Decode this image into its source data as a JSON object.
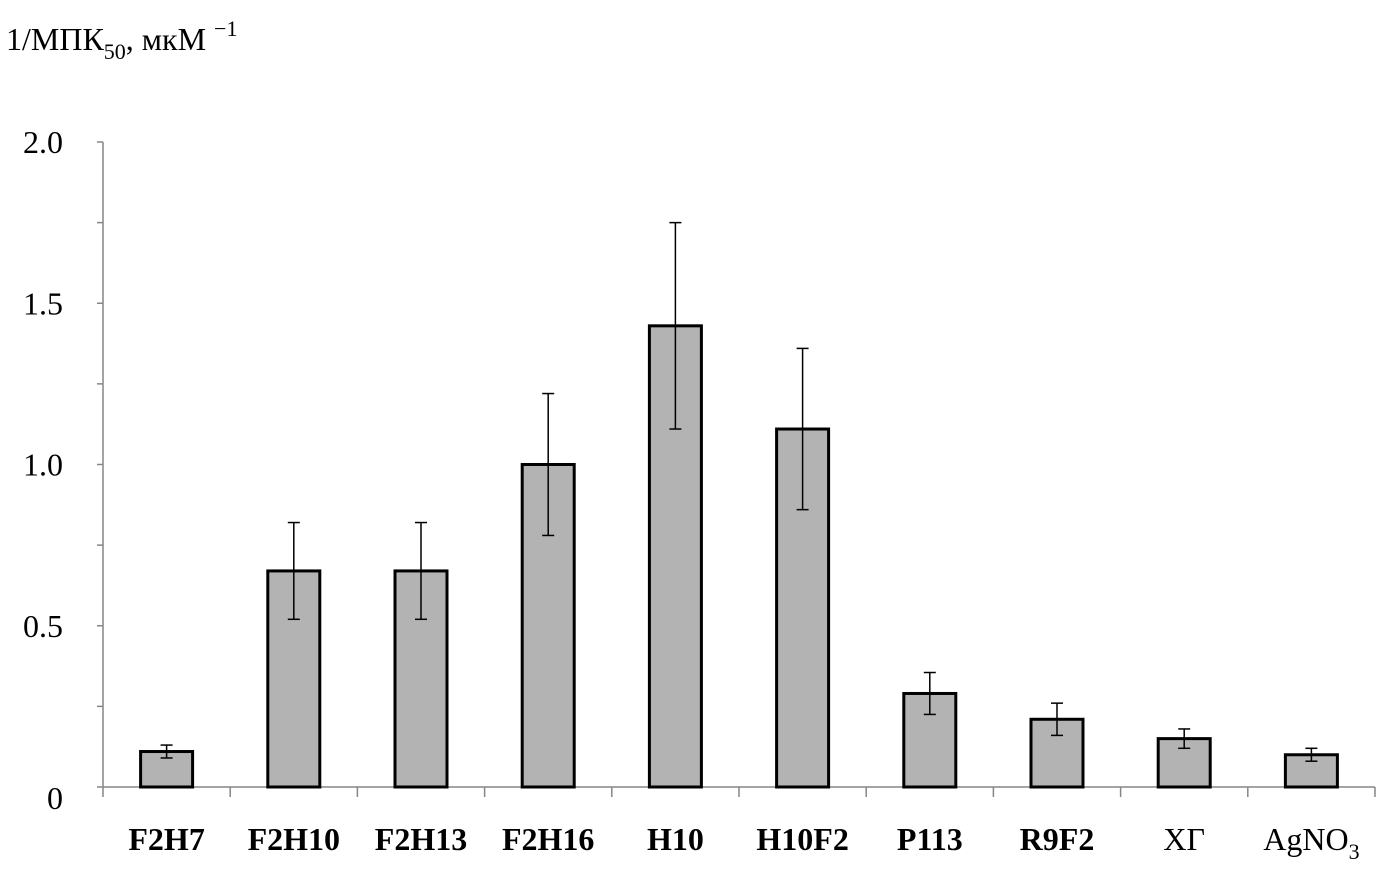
{
  "chart_data": {
    "type": "bar",
    "title": "",
    "xlabel": "",
    "ylabel": {
      "main": "1/МПК",
      "sub": "50",
      "unit": ", мкМ",
      "sup": "−1"
    },
    "ylim": [
      0,
      2.0
    ],
    "yticks": [
      0,
      0.5,
      1.0,
      1.5,
      2.0
    ],
    "ytick_labels": [
      "0",
      "0.5",
      "1.0",
      "1.5",
      "2.0"
    ],
    "grid": false,
    "legend": "none",
    "bar_color": "#b3b3b3",
    "edge_color": "#000000",
    "categories": [
      {
        "main": "F2H7",
        "sub": "",
        "bold": true
      },
      {
        "main": "F2H10",
        "sub": "",
        "bold": true
      },
      {
        "main": "F2H13",
        "sub": "",
        "bold": true
      },
      {
        "main": "F2H16",
        "sub": "",
        "bold": true
      },
      {
        "main": "H10",
        "sub": "",
        "bold": true
      },
      {
        "main": "H10F2",
        "sub": "",
        "bold": true
      },
      {
        "main": "P113",
        "sub": "",
        "bold": true
      },
      {
        "main": "R9F2",
        "sub": "",
        "bold": true
      },
      {
        "main": "ХГ",
        "sub": "",
        "bold": false
      },
      {
        "main": "AgNO",
        "sub": "3",
        "bold": false
      }
    ],
    "values": [
      0.11,
      0.67,
      0.67,
      1.0,
      1.43,
      1.11,
      0.29,
      0.21,
      0.15,
      0.1
    ],
    "errors": [
      0.02,
      0.15,
      0.15,
      0.22,
      0.32,
      0.25,
      0.065,
      0.05,
      0.03,
      0.02
    ]
  }
}
